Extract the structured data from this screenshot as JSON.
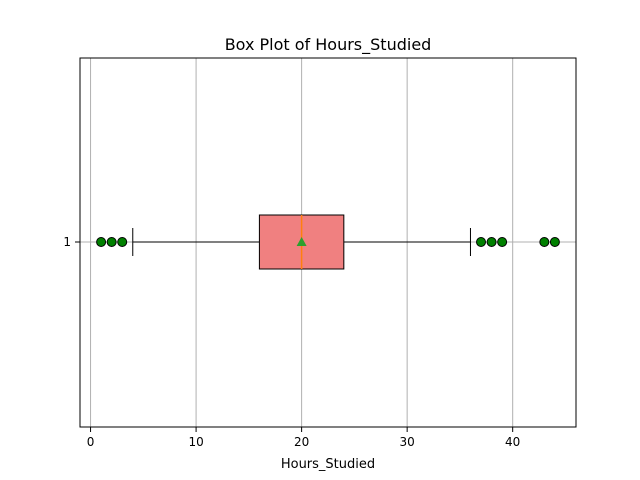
{
  "chart_data": {
    "type": "box",
    "orientation": "horizontal",
    "title": "Box Plot of Hours_Studied",
    "xlabel": "Hours_Studied",
    "ylabel": "",
    "xlim": [
      -1,
      46
    ],
    "xticks": [
      0,
      10,
      20,
      30,
      40
    ],
    "categories": [
      "1"
    ],
    "grid": true,
    "box": {
      "whisker_low": 4,
      "q1": 16,
      "median": 20,
      "q3": 24,
      "whisker_high": 36,
      "mean": 20,
      "outliers": [
        1,
        2,
        3,
        37,
        38,
        39,
        43,
        44
      ]
    },
    "colors": {
      "box_fill": "#f08080",
      "box_edge": "#000000",
      "median_line": "#ff7f0e",
      "mean_marker": "#2ca02c",
      "outlier_fill": "#008000",
      "grid": "#b0b0b0"
    }
  }
}
